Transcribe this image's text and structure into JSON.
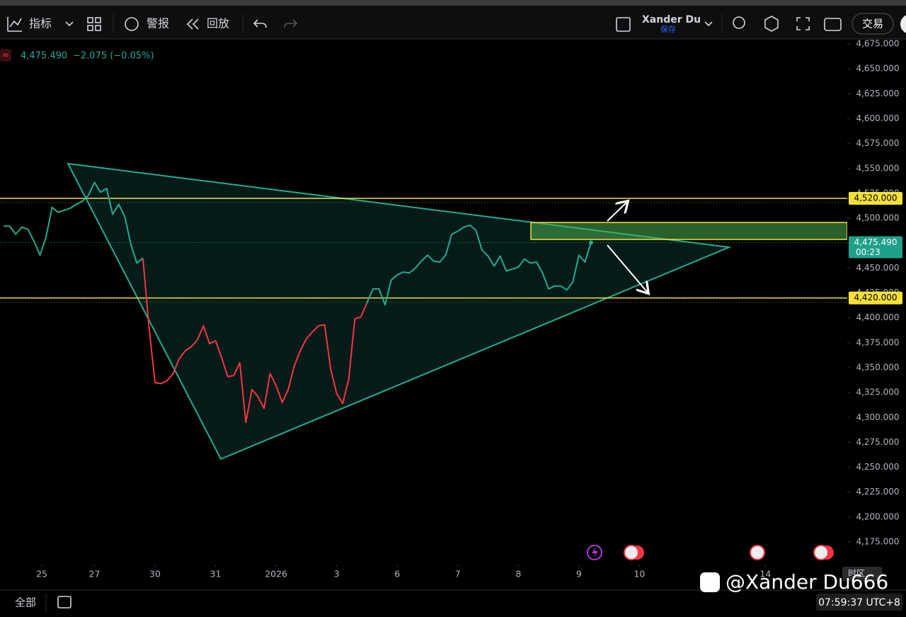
{
  "toolbar": {
    "indicators": "指标",
    "alerts": "警报",
    "replay": "回放",
    "user": "Xander Du",
    "saved": "保存",
    "trade": "交易"
  },
  "legend": {
    "last": "4,475.490",
    "change": "−2.075 (−0.05%)"
  },
  "chart_data": {
    "type": "line",
    "x": [
      -0.5,
      -0.4,
      -0.3,
      -0.2,
      -0.1,
      0,
      0.1,
      0.2,
      0.3,
      0.4,
      0.5,
      0.6,
      0.7,
      0.8,
      0.9,
      1,
      1.1,
      1.2,
      1.3,
      1.4,
      1.5,
      1.6,
      1.7,
      1.8,
      1.9,
      2,
      2.1,
      2.2,
      2.3,
      2.4,
      2.5,
      2.6,
      2.7,
      2.8,
      2.9,
      3,
      3.1,
      3.2,
      3.3,
      3.4,
      3.5,
      3.6,
      3.7,
      3.8,
      3.9,
      4,
      4.1,
      4.2,
      4.3,
      4.4,
      4.5,
      4.6,
      4.7,
      4.8,
      4.9,
      5,
      5.1,
      5.2,
      5.3,
      5.4,
      5.5,
      5.6,
      5.7,
      5.8,
      5.9,
      6,
      6.1,
      6.2,
      6.3,
      6.4,
      6.5,
      6.6,
      6.7,
      6.8,
      6.9,
      7,
      7.1,
      7.2,
      7.3,
      7.4,
      7.5,
      7.6,
      7.7,
      7.8,
      7.9,
      8,
      8.1,
      8.2,
      8.3,
      8.4,
      8.5,
      8.6,
      8.7,
      8.8,
      8.9,
      9,
      9.1,
      9.2
    ],
    "series": [
      {
        "color": "#22ab94",
        "values": [
          4492,
          4492,
          4484,
          4491,
          4489,
          4477,
          4463,
          4481,
          4511,
          4506,
          4508,
          4510,
          4514,
          4517,
          4523,
          4536,
          4526,
          4530,
          4504,
          4514,
          4502,
          4474,
          4455,
          4460,
          null,
          null,
          null,
          null,
          null,
          null,
          null,
          null,
          null,
          null,
          null,
          null,
          null,
          null,
          null,
          null,
          null,
          null,
          null,
          null,
          null,
          null,
          null,
          null,
          null,
          null,
          null,
          null,
          null,
          null,
          null,
          null,
          null,
          null,
          null,
          null,
          4415,
          4429,
          4429,
          4413,
          4438,
          4443,
          4446,
          4445,
          4450,
          4457,
          4463,
          4457,
          4456,
          4463,
          4484,
          4487,
          4491,
          4493,
          4488,
          4468,
          4462,
          4452,
          4462,
          4447,
          4449,
          4451,
          4459,
          4455,
          4456,
          4445,
          4429,
          4432,
          4432,
          4428,
          4436,
          4463,
          4456,
          4475.49
        ]
      },
      {
        "color": "#f23645",
        "values": [
          null,
          null,
          null,
          null,
          null,
          null,
          null,
          null,
          null,
          null,
          null,
          null,
          null,
          null,
          null,
          null,
          null,
          null,
          null,
          null,
          null,
          null,
          null,
          4460,
          4391,
          4335,
          4334,
          4337,
          4344,
          4359,
          4367,
          4371,
          4378,
          4392,
          4374,
          4377,
          4360,
          4341,
          4342,
          4355,
          4295,
          4328,
          4321,
          4309,
          4344,
          4332,
          4315,
          4328,
          4352,
          4367,
          4379,
          4386,
          4392,
          4393,
          4349,
          4324,
          4314,
          4339,
          4399,
          4401,
          4415,
          null,
          null,
          null,
          null,
          null,
          null,
          null,
          null,
          null,
          null,
          null,
          null,
          null,
          null,
          null,
          null,
          null,
          null,
          null,
          null,
          null,
          null,
          null,
          null,
          null,
          null,
          null,
          null,
          null,
          null,
          null,
          null,
          null,
          null,
          null,
          null,
          null
        ]
      }
    ],
    "xlim": [
      -0.56,
      13.42
    ],
    "xticks": [
      {
        "value": 0.13,
        "label": "25"
      },
      {
        "value": 1,
        "label": "27"
      },
      {
        "value": 2,
        "label": "30"
      },
      {
        "value": 3,
        "label": "31"
      },
      {
        "value": 4,
        "label": "2026"
      },
      {
        "value": 5,
        "label": "3"
      },
      {
        "value": 6,
        "label": "6"
      },
      {
        "value": 7,
        "label": "7"
      },
      {
        "value": 8,
        "label": "8"
      },
      {
        "value": 9,
        "label": "9"
      },
      {
        "value": 10,
        "label": "10"
      },
      {
        "value": 12.08,
        "label": "14"
      }
    ],
    "ylim": [
      4153.7,
      4680
    ],
    "yticks": [
      {
        "value": 4175,
        "label": "4,175.000"
      },
      {
        "value": 4200,
        "label": "4,200.000"
      },
      {
        "value": 4225,
        "label": "4,225.000"
      },
      {
        "value": 4250,
        "label": "4,250.000"
      },
      {
        "value": 4275,
        "label": "4,275.000"
      },
      {
        "value": 4300,
        "label": "4,300.000"
      },
      {
        "value": 4325,
        "label": "4,325.000"
      },
      {
        "value": 4350,
        "label": "4,350.000"
      },
      {
        "value": 4375,
        "label": "4,375.000"
      },
      {
        "value": 4400,
        "label": "4,400.000"
      },
      {
        "value": 4425,
        "label": "4,425.000"
      },
      {
        "value": 4450,
        "label": "4,450.000"
      },
      {
        "value": 4475,
        "label": "4,475.000"
      },
      {
        "value": 4500,
        "label": "4,500.000"
      },
      {
        "value": 4525,
        "label": "4,525.000"
      },
      {
        "value": 4550,
        "label": "4,550.000"
      },
      {
        "value": 4575,
        "label": "4,575.000"
      },
      {
        "value": 4600,
        "label": "4,600.000"
      },
      {
        "value": 4625,
        "label": "4,625.000"
      },
      {
        "value": 4650,
        "label": "4,650.000"
      },
      {
        "value": 4675,
        "label": "4,675.000"
      }
    ],
    "grid": false,
    "price_lines": [
      {
        "value": 4520,
        "label": "4,520.000",
        "color": "#f5e03a"
      },
      {
        "value": 4420,
        "label": "4,420.000",
        "color": "#f5e03a"
      }
    ],
    "current": {
      "value": 4475.49,
      "label": "4,475.490",
      "countdown": "00:23",
      "color": "#1fa08a"
    }
  },
  "footer": {
    "range": "全部",
    "clock": "07:59:37 UTC+8",
    "timezone": "时区"
  },
  "watermark": "@Xander Du666"
}
